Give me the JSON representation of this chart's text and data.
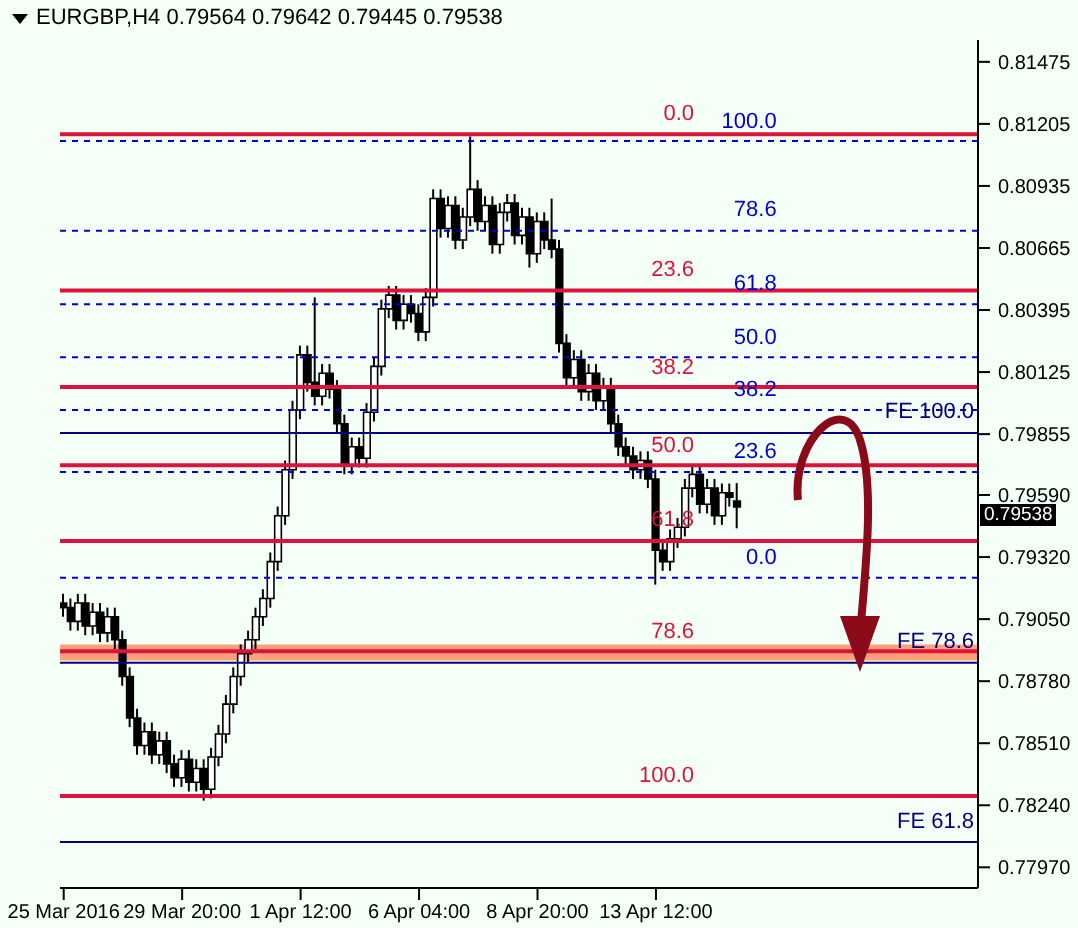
{
  "chart_data": {
    "type": "candlestick",
    "title": "EURGBP,H4  0.79564 0.79642 0.79445 0.79538",
    "categories": [
      "25 Mar 2016",
      null,
      null,
      null,
      null,
      null,
      null,
      null,
      null,
      null,
      null,
      null,
      null,
      null,
      null,
      null,
      "29 Mar 20:00",
      null,
      null,
      null,
      null,
      null,
      null,
      null,
      null,
      null,
      null,
      null,
      null,
      null,
      null,
      null,
      "1 Apr 12:00",
      null,
      null,
      null,
      null,
      null,
      null,
      null,
      null,
      null,
      null,
      null,
      null,
      null,
      null,
      null,
      "6 Apr 04:00",
      null,
      null,
      null,
      null,
      null,
      null,
      null,
      null,
      null,
      null,
      null,
      null,
      null,
      null,
      null,
      "8 Apr 20:00",
      null,
      null,
      null,
      null,
      null,
      null,
      null,
      null,
      null,
      null,
      null,
      null,
      null,
      null,
      null,
      "13 Apr 12:00",
      null,
      null,
      null,
      null,
      null,
      null,
      null,
      null,
      null,
      null,
      null,
      null,
      null,
      null,
      null,
      null,
      null,
      null,
      null,
      null,
      null,
      null,
      null,
      null,
      null,
      null,
      null,
      null,
      null,
      null,
      null,
      null,
      null,
      null,
      null,
      null,
      null,
      null,
      null,
      null,
      null,
      null,
      null
    ],
    "ohlc": [
      [
        0.7912,
        0.7916,
        0.7906,
        0.791
      ],
      [
        0.791,
        0.7914,
        0.79,
        0.7904
      ],
      [
        0.7904,
        0.7916,
        0.79,
        0.7912
      ],
      [
        0.7912,
        0.7916,
        0.7898,
        0.7902
      ],
      [
        0.7902,
        0.7912,
        0.7898,
        0.7908
      ],
      [
        0.7908,
        0.7912,
        0.7895,
        0.7899
      ],
      [
        0.7899,
        0.791,
        0.7895,
        0.7906
      ],
      [
        0.7906,
        0.791,
        0.7892,
        0.7896
      ],
      [
        0.7896,
        0.79,
        0.7876,
        0.788
      ],
      [
        0.788,
        0.7884,
        0.7858,
        0.7862
      ],
      [
        0.7862,
        0.7866,
        0.7846,
        0.785
      ],
      [
        0.785,
        0.786,
        0.7846,
        0.7856
      ],
      [
        0.7856,
        0.786,
        0.7842,
        0.7846
      ],
      [
        0.7846,
        0.7856,
        0.7842,
        0.7852
      ],
      [
        0.7852,
        0.7856,
        0.7838,
        0.7842
      ],
      [
        0.7842,
        0.7846,
        0.7832,
        0.7836
      ],
      [
        0.7836,
        0.7848,
        0.7832,
        0.7844
      ],
      [
        0.7844,
        0.7848,
        0.783,
        0.7834
      ],
      [
        0.7834,
        0.7844,
        0.783,
        0.784
      ],
      [
        0.784,
        0.7844,
        0.7826,
        0.7831
      ],
      [
        0.7831,
        0.7849,
        0.7827,
        0.7845
      ],
      [
        0.7845,
        0.7859,
        0.7841,
        0.7855
      ],
      [
        0.7855,
        0.7872,
        0.7851,
        0.7868
      ],
      [
        0.7868,
        0.7884,
        0.7864,
        0.788
      ],
      [
        0.788,
        0.7894,
        0.7876,
        0.789
      ],
      [
        0.789,
        0.79,
        0.7886,
        0.7896
      ],
      [
        0.7896,
        0.791,
        0.7892,
        0.7906
      ],
      [
        0.7906,
        0.7918,
        0.7902,
        0.7914
      ],
      [
        0.7914,
        0.7934,
        0.791,
        0.793
      ],
      [
        0.793,
        0.7954,
        0.7926,
        0.795
      ],
      [
        0.795,
        0.7974,
        0.7946,
        0.797
      ],
      [
        0.797,
        0.8,
        0.7966,
        0.7996
      ],
      [
        0.7996,
        0.8024,
        0.7992,
        0.802
      ],
      [
        0.802,
        0.8024,
        0.8004,
        0.8008
      ],
      [
        0.8008,
        0.8045,
        0.7998,
        0.8002
      ],
      [
        0.8002,
        0.8016,
        0.7998,
        0.8012
      ],
      [
        0.8012,
        0.8016,
        0.8001,
        0.8005
      ],
      [
        0.8005,
        0.8009,
        0.7986,
        0.799
      ],
      [
        0.799,
        0.7994,
        0.7968,
        0.7972
      ],
      [
        0.7972,
        0.7984,
        0.7968,
        0.798
      ],
      [
        0.798,
        0.7984,
        0.7971,
        0.7975
      ],
      [
        0.7975,
        0.7999,
        0.7971,
        0.7995
      ],
      [
        0.7995,
        0.8019,
        0.7991,
        0.8015
      ],
      [
        0.8015,
        0.8044,
        0.8011,
        0.804
      ],
      [
        0.804,
        0.805,
        0.8036,
        0.8046
      ],
      [
        0.8046,
        0.805,
        0.8031,
        0.8035
      ],
      [
        0.8035,
        0.8046,
        0.8031,
        0.8042
      ],
      [
        0.8042,
        0.8046,
        0.8034,
        0.8038
      ],
      [
        0.8038,
        0.8042,
        0.8026,
        0.803
      ],
      [
        0.803,
        0.8049,
        0.8026,
        0.8045
      ],
      [
        0.8045,
        0.8092,
        0.8041,
        0.8088
      ],
      [
        0.8088,
        0.8092,
        0.8071,
        0.8075
      ],
      [
        0.8075,
        0.8089,
        0.8071,
        0.8085
      ],
      [
        0.8085,
        0.8089,
        0.8066,
        0.807
      ],
      [
        0.807,
        0.8084,
        0.8066,
        0.808
      ],
      [
        0.808,
        0.8115,
        0.8076,
        0.8092
      ],
      [
        0.8092,
        0.8096,
        0.8074,
        0.8078
      ],
      [
        0.8078,
        0.8089,
        0.8074,
        0.8085
      ],
      [
        0.8085,
        0.8089,
        0.8064,
        0.8068
      ],
      [
        0.8068,
        0.8086,
        0.8064,
        0.8082
      ],
      [
        0.8082,
        0.809,
        0.8078,
        0.8086
      ],
      [
        0.8086,
        0.809,
        0.8068,
        0.8072
      ],
      [
        0.8072,
        0.8084,
        0.8068,
        0.808
      ],
      [
        0.808,
        0.8084,
        0.8058,
        0.8064
      ],
      [
        0.8064,
        0.8082,
        0.806,
        0.8078
      ],
      [
        0.8078,
        0.8082,
        0.8066,
        0.807
      ],
      [
        0.807,
        0.8088,
        0.8062,
        0.8066
      ],
      [
        0.8066,
        0.807,
        0.8021,
        0.8025
      ],
      [
        0.8025,
        0.8029,
        0.8006,
        0.801
      ],
      [
        0.801,
        0.8022,
        0.8006,
        0.8018
      ],
      [
        0.8018,
        0.8022,
        0.8,
        0.8004
      ],
      [
        0.8004,
        0.8016,
        0.8,
        0.8012
      ],
      [
        0.8012,
        0.8016,
        0.7996,
        0.8
      ],
      [
        0.8,
        0.801,
        0.7996,
        0.8006
      ],
      [
        0.8006,
        0.801,
        0.7986,
        0.799
      ],
      [
        0.799,
        0.7994,
        0.7976,
        0.798
      ],
      [
        0.798,
        0.7984,
        0.7972,
        0.7976
      ],
      [
        0.7976,
        0.798,
        0.7966,
        0.797
      ],
      [
        0.797,
        0.7978,
        0.7966,
        0.7974
      ],
      [
        0.7974,
        0.7978,
        0.7962,
        0.7966
      ],
      [
        0.7966,
        0.797,
        0.792,
        0.7935
      ],
      [
        0.7935,
        0.7939,
        0.7926,
        0.793
      ],
      [
        0.793,
        0.7944,
        0.7926,
        0.794
      ],
      [
        0.794,
        0.7949,
        0.7936,
        0.7945
      ],
      [
        0.7945,
        0.7966,
        0.7941,
        0.7962
      ],
      [
        0.7962,
        0.7972,
        0.7958,
        0.7968
      ],
      [
        0.7968,
        0.7972,
        0.7951,
        0.7955
      ],
      [
        0.7955,
        0.7966,
        0.7951,
        0.7962
      ],
      [
        0.7962,
        0.7966,
        0.7946,
        0.795
      ],
      [
        0.795,
        0.7964,
        0.7946,
        0.796
      ],
      [
        0.796,
        0.7964,
        0.7954,
        0.7958
      ],
      [
        0.79564,
        0.79642,
        0.79445,
        0.79538
      ],
      null,
      null,
      null,
      null,
      null,
      null,
      null,
      null,
      null,
      null,
      null,
      null,
      null,
      null,
      null,
      null,
      null,
      null,
      null,
      null,
      null,
      null,
      null,
      null,
      null,
      null,
      null,
      null,
      null,
      null,
      null,
      null
    ],
    "ylim": [
      0.7788,
      0.8157
    ],
    "yticks": [
      0.81475,
      0.81205,
      0.80935,
      0.80665,
      0.80395,
      0.80125,
      0.79855,
      {
        "value": 0.7959,
        "label": "0.79590"
      },
      {
        "value": 0.7932,
        "label": "0.79320"
      },
      {
        "value": 0.7905,
        "label": "0.79050"
      },
      {
        "value": 0.7878,
        "label": "0.78780"
      },
      {
        "value": 0.7851,
        "label": "0.78510"
      },
      {
        "value": 0.7824,
        "label": "0.78240"
      },
      {
        "value": 0.7797,
        "label": "0.77970"
      }
    ],
    "ref_lines": [
      {
        "axis": "y",
        "value": 0.8116,
        "color": "#dc143c",
        "line_style": "solid"
      },
      {
        "axis": "y",
        "value": 0.8048,
        "color": "#dc143c",
        "line_style": "solid"
      },
      {
        "axis": "y",
        "value": 0.8006,
        "color": "#dc143c",
        "line_style": "solid"
      },
      {
        "axis": "y",
        "value": 0.7972,
        "color": "#dc143c",
        "line_style": "solid"
      },
      {
        "axis": "y",
        "value": 0.7939,
        "color": "#dc143c",
        "line_style": "solid"
      },
      {
        "axis": "y",
        "value": 0.7891,
        "color": "#dc143c",
        "line_style": "solid"
      },
      {
        "axis": "y",
        "value": 0.7828,
        "color": "#dc143c",
        "line_style": "solid"
      },
      {
        "axis": "y",
        "value": 0.8113,
        "color": "#0000cd",
        "line_style": "dashed"
      },
      {
        "axis": "y",
        "value": 0.8074,
        "color": "#0000cd",
        "line_style": "dashed"
      },
      {
        "axis": "y",
        "value": 0.8042,
        "color": "#0000cd",
        "line_style": "dashed"
      },
      {
        "axis": "y",
        "value": 0.8019,
        "color": "#0000cd",
        "line_style": "dashed"
      },
      {
        "axis": "y",
        "value": 0.7996,
        "color": "#0000cd",
        "line_style": "dashed"
      },
      {
        "axis": "y",
        "value": 0.7969,
        "color": "#0000cd",
        "line_style": "dashed"
      },
      {
        "axis": "y",
        "value": 0.7923,
        "color": "#0000cd",
        "line_style": "dashed"
      },
      {
        "axis": "y",
        "value": 0.7986,
        "color": "#000080",
        "line_style": "solid"
      },
      {
        "axis": "y",
        "value": 0.7886,
        "color": "#000080",
        "line_style": "solid"
      },
      {
        "axis": "y",
        "value": 0.7808,
        "color": "#000080",
        "line_style": "solid"
      }
    ],
    "bands": [
      {
        "axis": "y",
        "from": 0.7887,
        "to": 0.7894,
        "color": "#ffa07a"
      }
    ],
    "annotations": [
      {
        "text": "0.0",
        "y": 0.8116
      },
      {
        "text": "23.6",
        "y": 0.8048
      },
      {
        "text": "38.2",
        "y": 0.8006
      },
      {
        "text": "50.0",
        "y": 0.7972
      },
      {
        "text": "61.8",
        "y": 0.7939
      },
      {
        "text": "78.6",
        "y": 0.7891
      },
      {
        "text": "100.0",
        "y": 0.7828
      },
      {
        "text": "100.0",
        "y": 0.8113
      },
      {
        "text": "78.6",
        "y": 0.8074
      },
      {
        "text": "61.8",
        "y": 0.8042
      },
      {
        "text": "50.0",
        "y": 0.8019
      },
      {
        "text": "38.2",
        "y": 0.7996
      },
      {
        "text": "23.6",
        "y": 0.7969
      },
      {
        "text": "0.0",
        "y": 0.7923
      },
      {
        "text": "FE 100.0",
        "y": 0.7986
      },
      {
        "text": "FE 78.6",
        "y": 0.7886
      },
      {
        "text": "FE 61.8",
        "y": 0.7808
      },
      "0.79538"
    ]
  }
}
